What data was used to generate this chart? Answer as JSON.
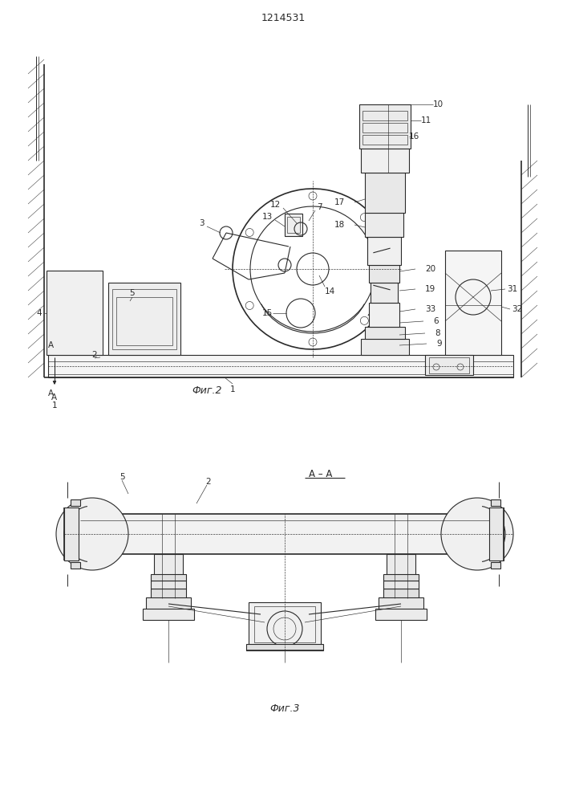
{
  "bg_color": "#ffffff",
  "line_color": "#2a2a2a",
  "title_text": "1214531",
  "fig1_caption": "Фиг.2",
  "fig2_caption": "Фиг.3",
  "fig2_section_label": "А – А",
  "lw": 0.8,
  "tlw": 0.45,
  "thw": 1.2
}
